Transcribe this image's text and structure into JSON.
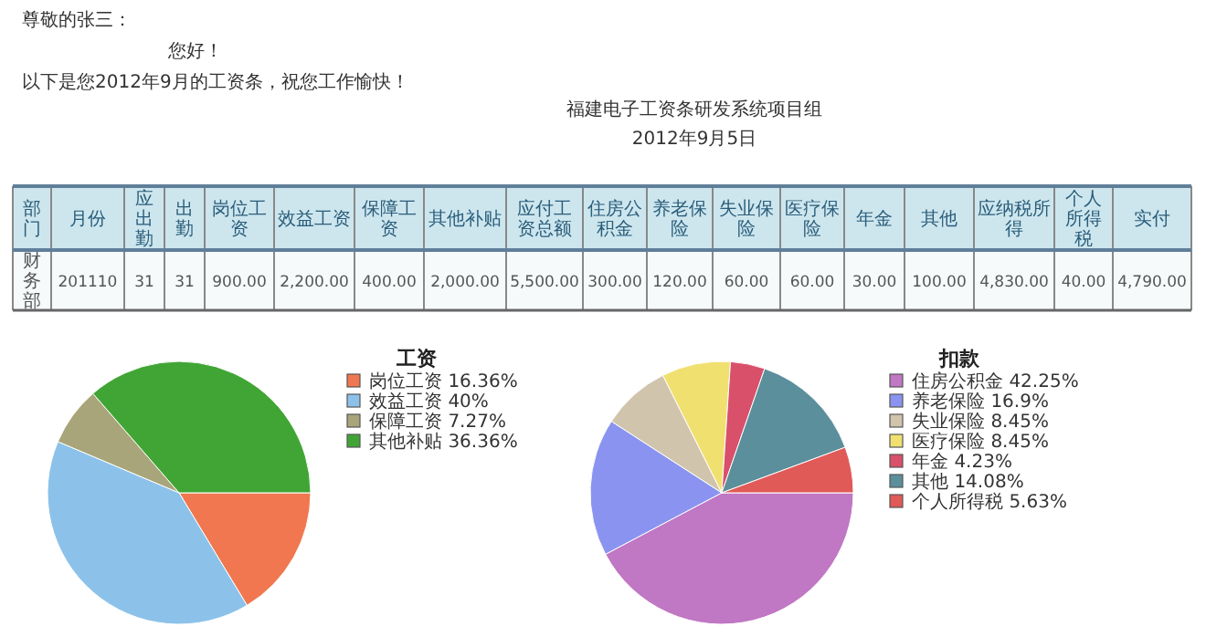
{
  "chart_data": [
    {
      "type": "other",
      "annotations": [
        "尊敬的张三：",
        "您好！",
        "以下是您2012年9月的工资条，祝您工作愉快！",
        "福建电子工资条研发系统项目组",
        "2012年9月5日"
      ],
      "categories": [
        "部门",
        "月份",
        "应出勤",
        "出勤",
        "岗位工资",
        "效益工资",
        "保障工资",
        "其他补贴",
        "应付工资总额",
        "住房公积金",
        "养老保险",
        "失业保险",
        "医疗保险",
        "年金",
        "其他",
        "应纳税所得",
        "个人所得税",
        "实付"
      ],
      "values": [
        null,
        201110,
        31,
        31,
        900,
        2200,
        400,
        2000,
        5500,
        300,
        120,
        60,
        60,
        30,
        100,
        4830,
        40,
        4790
      ],
      "value_labels": [
        "财务部",
        "201110",
        "31",
        "31",
        "900.00",
        "2,200.00",
        "400.00",
        "2,000.00",
        "5,500.00",
        "300.00",
        "120.00",
        "60.00",
        "60.00",
        "30.00",
        "100.00",
        "4,830.00",
        "40.00",
        "4,790.00"
      ]
    },
    {
      "type": "pie",
      "title": "工资",
      "legend": "right",
      "categories": [
        "岗位工资",
        "效益工资",
        "保障工资",
        "其他补贴"
      ],
      "values": [
        16.36,
        40,
        7.27,
        36.36
      ],
      "colors": [
        "#f0774f",
        "#8cc2ea",
        "#a9a57a",
        "#41a535"
      ],
      "value_labels": [
        "16.36%",
        "40%",
        "7.27%",
        "36.36%"
      ]
    },
    {
      "type": "pie",
      "title": "扣款",
      "legend": "right",
      "categories": [
        "住房公积金",
        "养老保险",
        "失业保险",
        "医疗保险",
        "年金",
        "其他",
        "个人所得税"
      ],
      "values": [
        42.25,
        16.9,
        8.45,
        8.45,
        4.23,
        14.08,
        5.63
      ],
      "colors": [
        "#c077c4",
        "#8a94f0",
        "#d1c4ac",
        "#f0e070",
        "#d9506a",
        "#5b8f9c",
        "#e05a57"
      ],
      "value_labels": [
        "42.25%",
        "16.9%",
        "8.45%",
        "8.45%",
        "4.23%",
        "14.08%",
        "5.63%"
      ]
    }
  ]
}
